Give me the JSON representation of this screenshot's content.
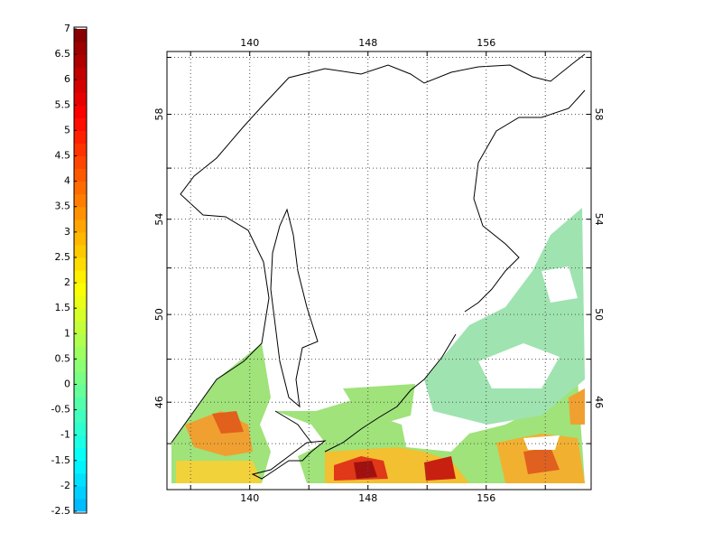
{
  "chart_data": {
    "type": "map",
    "projection": "mercator",
    "xlim": [
      134.4,
      163.1
    ],
    "ylim": [
      41.7,
      60.2
    ],
    "xticks": [
      140,
      148,
      156
    ],
    "xminor": [
      136,
      144,
      152,
      160
    ],
    "yticks": [
      46,
      50,
      54,
      58
    ],
    "yminor": [
      44,
      48,
      52,
      56,
      60
    ],
    "grid": true,
    "colormap": "jet",
    "clim": [
      -2.5,
      7
    ],
    "cticks": [
      7,
      6.5,
      6,
      5.5,
      5,
      4.5,
      4,
      3.5,
      3,
      2.5,
      2,
      1.5,
      1,
      0.5,
      0,
      -0.5,
      -1,
      -1.5,
      -2,
      -2.5
    ]
  }
}
